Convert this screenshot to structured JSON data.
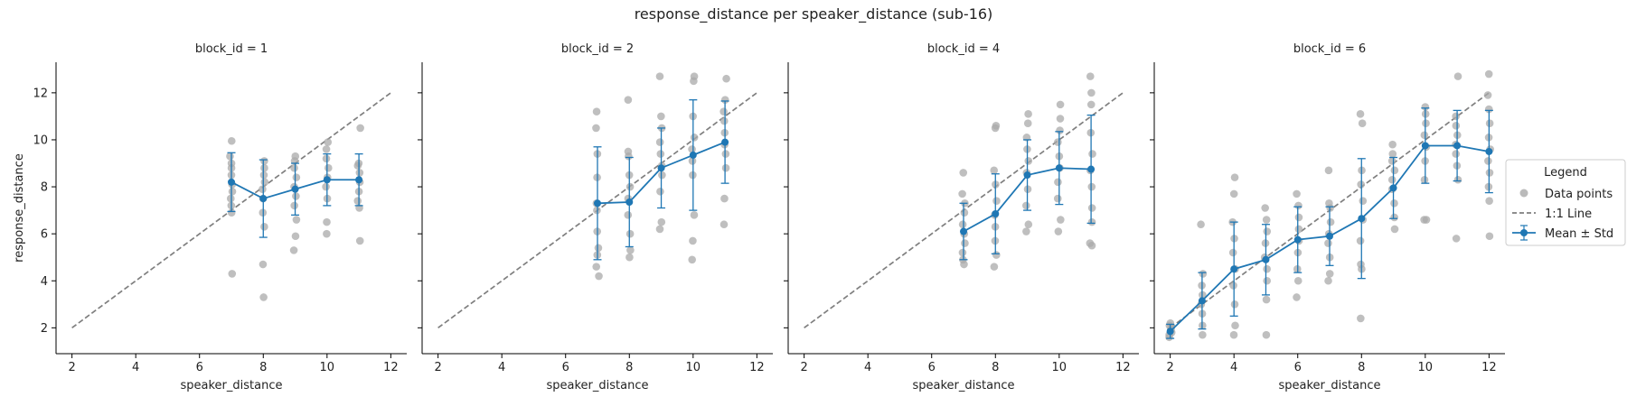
{
  "figure": {
    "title": "response_distance per speaker_distance (sub-16)"
  },
  "legend": {
    "title": "Legend",
    "items": [
      "Data points",
      "1:1 Line",
      "Mean ± Std"
    ]
  },
  "colors": {
    "points": "#a9a9a9",
    "mean": "#1f77b4",
    "identity": "#7f7f7f"
  },
  "chart_data": [
    {
      "type": "scatter",
      "title": "block_id = 1",
      "xlabel": "speaker_distance",
      "ylabel": "response_distance",
      "xlim": [
        1.5,
        12.5
      ],
      "ylim": [
        0.9,
        13.3
      ],
      "xticks": [
        2,
        4,
        6,
        8,
        10,
        12
      ],
      "yticks": [
        2,
        4,
        6,
        8,
        10,
        12
      ],
      "identity_line": [
        [
          2,
          2
        ],
        [
          12,
          12
        ]
      ],
      "points": {
        "7": [
          4.3,
          6.9,
          7.2,
          7.5,
          7.8,
          8.1,
          8.5,
          8.8,
          9.0,
          9.3,
          9.95
        ],
        "8": [
          3.3,
          4.7,
          6.3,
          6.9,
          7.5,
          7.9,
          8.2,
          8.5,
          8.8,
          9.1
        ],
        "9": [
          5.3,
          5.9,
          6.6,
          7.2,
          7.6,
          8.0,
          8.4,
          8.8,
          9.1,
          9.3
        ],
        "10": [
          6.0,
          6.5,
          7.5,
          8.0,
          8.4,
          8.8,
          9.2,
          9.6,
          9.9
        ],
        "11": [
          5.7,
          7.1,
          7.4,
          7.8,
          8.2,
          8.6,
          8.9,
          9.0,
          10.5
        ]
      },
      "series": [
        {
          "name": "Mean ± Std",
          "x": [
            7,
            8,
            9,
            10,
            11
          ],
          "mean": [
            8.2,
            7.5,
            7.9,
            8.3,
            8.3
          ],
          "std": [
            1.25,
            1.65,
            1.1,
            1.1,
            1.1
          ]
        }
      ]
    },
    {
      "type": "scatter",
      "title": "block_id = 2",
      "xlabel": "speaker_distance",
      "ylabel": "",
      "xlim": [
        1.5,
        12.5
      ],
      "ylim": [
        0.9,
        13.3
      ],
      "xticks": [
        2,
        4,
        6,
        8,
        10,
        12
      ],
      "yticks": [
        2,
        4,
        6,
        8,
        10,
        12
      ],
      "identity_line": [
        [
          2,
          2
        ],
        [
          12,
          12
        ]
      ],
      "points": {
        "7": [
          4.2,
          4.6,
          5.1,
          5.4,
          6.1,
          7.0,
          7.3,
          8.4,
          9.4,
          10.5,
          11.2
        ],
        "8": [
          5.0,
          5.3,
          6.0,
          6.8,
          7.5,
          8.0,
          8.5,
          9.3,
          9.5,
          11.7
        ],
        "9": [
          6.2,
          6.5,
          7.8,
          8.5,
          8.9,
          9.4,
          9.9,
          10.5,
          11.0,
          12.7
        ],
        "10": [
          4.9,
          5.7,
          6.8,
          8.5,
          9.1,
          9.6,
          10.1,
          11.0,
          12.5,
          12.7
        ],
        "11": [
          6.4,
          7.5,
          8.8,
          9.4,
          9.8,
          10.3,
          10.8,
          11.2,
          11.7,
          12.6
        ]
      },
      "series": [
        {
          "name": "Mean ± Std",
          "x": [
            7,
            8,
            9,
            10,
            11
          ],
          "mean": [
            7.3,
            7.35,
            8.8,
            9.35,
            9.9
          ],
          "std": [
            2.4,
            1.9,
            1.7,
            2.35,
            1.75
          ]
        }
      ]
    },
    {
      "type": "scatter",
      "title": "block_id = 4",
      "xlabel": "speaker_distance",
      "ylabel": "",
      "xlim": [
        1.5,
        12.5
      ],
      "ylim": [
        0.9,
        13.3
      ],
      "xticks": [
        2,
        4,
        6,
        8,
        10,
        12
      ],
      "yticks": [
        2,
        4,
        6,
        8,
        10,
        12
      ],
      "identity_line": [
        [
          2,
          2
        ],
        [
          12,
          12
        ]
      ],
      "points": {
        "7": [
          4.7,
          4.9,
          5.2,
          5.6,
          6.0,
          6.4,
          6.9,
          7.3,
          7.7,
          8.6
        ],
        "8": [
          4.6,
          5.1,
          5.7,
          6.3,
          6.8,
          7.4,
          8.1,
          8.7,
          10.5,
          10.6
        ],
        "9": [
          6.1,
          6.4,
          7.2,
          7.9,
          8.6,
          9.1,
          9.6,
          10.1,
          10.7,
          11.1
        ],
        "10": [
          6.1,
          6.6,
          7.5,
          8.2,
          8.8,
          9.3,
          9.9,
          10.4,
          10.9,
          11.5
        ],
        "11": [
          5.5,
          5.6,
          6.5,
          7.1,
          8.0,
          8.7,
          9.4,
          10.3,
          11.5,
          12.0,
          12.7
        ]
      },
      "series": [
        {
          "name": "Mean ± Std",
          "x": [
            7,
            8,
            9,
            10,
            11
          ],
          "mean": [
            6.1,
            6.85,
            8.5,
            8.8,
            8.75
          ],
          "std": [
            1.2,
            1.7,
            1.5,
            1.55,
            2.3
          ]
        }
      ]
    },
    {
      "type": "scatter",
      "title": "block_id = 6",
      "xlabel": "speaker_distance",
      "ylabel": "",
      "xlim": [
        1.5,
        12.5
      ],
      "ylim": [
        0.9,
        13.3
      ],
      "xticks": [
        2,
        4,
        6,
        8,
        10,
        12
      ],
      "yticks": [
        2,
        4,
        6,
        8,
        10,
        12
      ],
      "identity_line": [
        [
          2,
          2
        ],
        [
          12,
          12
        ]
      ],
      "points": {
        "2": [
          1.6,
          1.7,
          1.8,
          1.9,
          2.0,
          2.1,
          2.2
        ],
        "3": [
          1.7,
          2.1,
          2.6,
          3.0,
          3.4,
          3.8,
          4.3,
          6.4
        ],
        "4": [
          1.7,
          2.1,
          3.0,
          3.8,
          4.5,
          5.2,
          5.8,
          6.5,
          7.7,
          8.4
        ],
        "5": [
          1.7,
          3.2,
          4.0,
          4.5,
          5.0,
          5.6,
          6.1,
          6.6,
          7.1
        ],
        "6": [
          3.3,
          4.0,
          4.5,
          5.2,
          5.7,
          6.2,
          6.7,
          7.2,
          7.7
        ],
        "7": [
          4.0,
          4.3,
          5.0,
          5.6,
          6.0,
          6.5,
          7.1,
          7.3,
          8.7
        ],
        "8": [
          2.4,
          4.5,
          4.7,
          5.7,
          6.6,
          7.4,
          8.1,
          8.7,
          10.7,
          11.1
        ],
        "9": [
          6.2,
          6.7,
          7.3,
          7.9,
          8.3,
          8.7,
          9.1,
          9.4,
          9.8
        ],
        "10": [
          6.6,
          6.6,
          8.3,
          9.1,
          9.7,
          10.2,
          10.7,
          11.1,
          11.4
        ],
        "11": [
          5.8,
          8.3,
          8.9,
          9.4,
          9.8,
          10.2,
          10.6,
          11.0,
          12.7
        ],
        "12": [
          5.9,
          7.4,
          8.0,
          8.6,
          9.1,
          9.6,
          10.1,
          10.7,
          11.3,
          11.9,
          12.8
        ]
      },
      "series": [
        {
          "name": "Mean ± Std",
          "x": [
            2,
            3,
            4,
            5,
            6,
            7,
            8,
            9,
            10,
            11,
            12
          ],
          "mean": [
            1.85,
            3.15,
            4.5,
            4.9,
            5.75,
            5.9,
            6.65,
            7.95,
            9.75,
            9.75,
            9.5
          ],
          "std": [
            0.3,
            1.2,
            2.0,
            1.5,
            1.4,
            1.25,
            2.55,
            1.3,
            1.6,
            1.5,
            1.75
          ]
        }
      ]
    }
  ]
}
